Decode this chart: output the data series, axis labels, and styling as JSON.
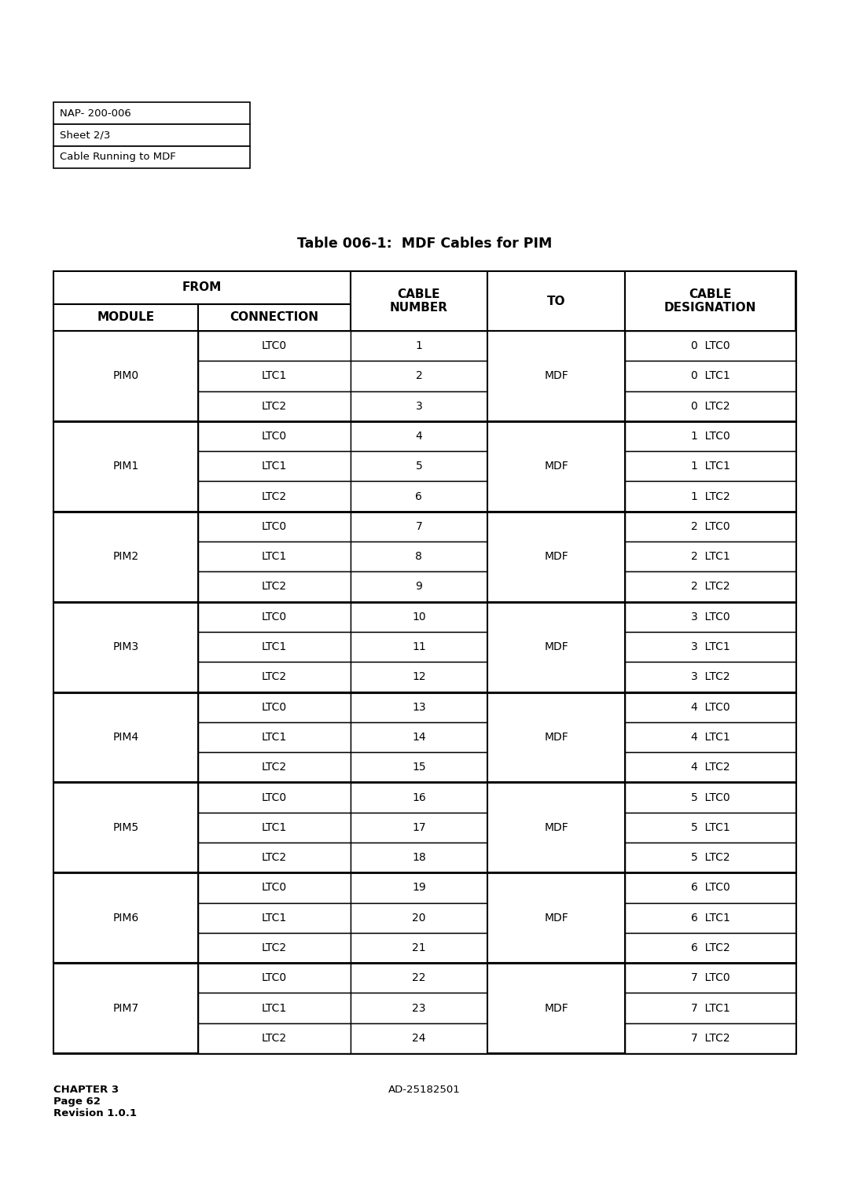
{
  "title": "Table 006-1:  MDF Cables for PIM",
  "nap_box": [
    "NAP- 200-006",
    "Sheet 2/3",
    "Cable Running to MDF"
  ],
  "rows": [
    [
      "PIM0",
      "LTC0",
      "1",
      "MDF",
      "0  LTC0"
    ],
    [
      "PIM0",
      "LTC1",
      "2",
      "MDF",
      "0  LTC1"
    ],
    [
      "PIM0",
      "LTC2",
      "3",
      "MDF",
      "0  LTC2"
    ],
    [
      "PIM1",
      "LTC0",
      "4",
      "MDF",
      "1  LTC0"
    ],
    [
      "PIM1",
      "LTC1",
      "5",
      "MDF",
      "1  LTC1"
    ],
    [
      "PIM1",
      "LTC2",
      "6",
      "MDF",
      "1  LTC2"
    ],
    [
      "PIM2",
      "LTC0",
      "7",
      "MDF",
      "2  LTC0"
    ],
    [
      "PIM2",
      "LTC1",
      "8",
      "MDF",
      "2  LTC1"
    ],
    [
      "PIM2",
      "LTC2",
      "9",
      "MDF",
      "2  LTC2"
    ],
    [
      "PIM3",
      "LTC0",
      "10",
      "MDF",
      "3  LTC0"
    ],
    [
      "PIM3",
      "LTC1",
      "11",
      "MDF",
      "3  LTC1"
    ],
    [
      "PIM3",
      "LTC2",
      "12",
      "MDF",
      "3  LTC2"
    ],
    [
      "PIM4",
      "LTC0",
      "13",
      "MDF",
      "4  LTC0"
    ],
    [
      "PIM4",
      "LTC1",
      "14",
      "MDF",
      "4  LTC1"
    ],
    [
      "PIM4",
      "LTC2",
      "15",
      "MDF",
      "4  LTC2"
    ],
    [
      "PIM5",
      "LTC0",
      "16",
      "MDF",
      "5  LTC0"
    ],
    [
      "PIM5",
      "LTC1",
      "17",
      "MDF",
      "5  LTC1"
    ],
    [
      "PIM5",
      "LTC2",
      "18",
      "MDF",
      "5  LTC2"
    ],
    [
      "PIM6",
      "LTC0",
      "19",
      "MDF",
      "6  LTC0"
    ],
    [
      "PIM6",
      "LTC1",
      "20",
      "MDF",
      "6  LTC1"
    ],
    [
      "PIM6",
      "LTC2",
      "21",
      "MDF",
      "6  LTC2"
    ],
    [
      "PIM7",
      "LTC0",
      "22",
      "MDF",
      "7  LTC0"
    ],
    [
      "PIM7",
      "LTC1",
      "23",
      "MDF",
      "7  LTC1"
    ],
    [
      "PIM7",
      "LTC2",
      "24",
      "MDF",
      "7  LTC2"
    ]
  ],
  "footer_left": "CHAPTER 3\nPage 62\nRevision 1.0.1",
  "footer_center": "AD-25182501",
  "bg_color": "#ffffff",
  "text_color": "#000000",
  "pim_list": [
    "PIM0",
    "PIM1",
    "PIM2",
    "PIM3",
    "PIM4",
    "PIM5",
    "PIM6",
    "PIM7"
  ]
}
